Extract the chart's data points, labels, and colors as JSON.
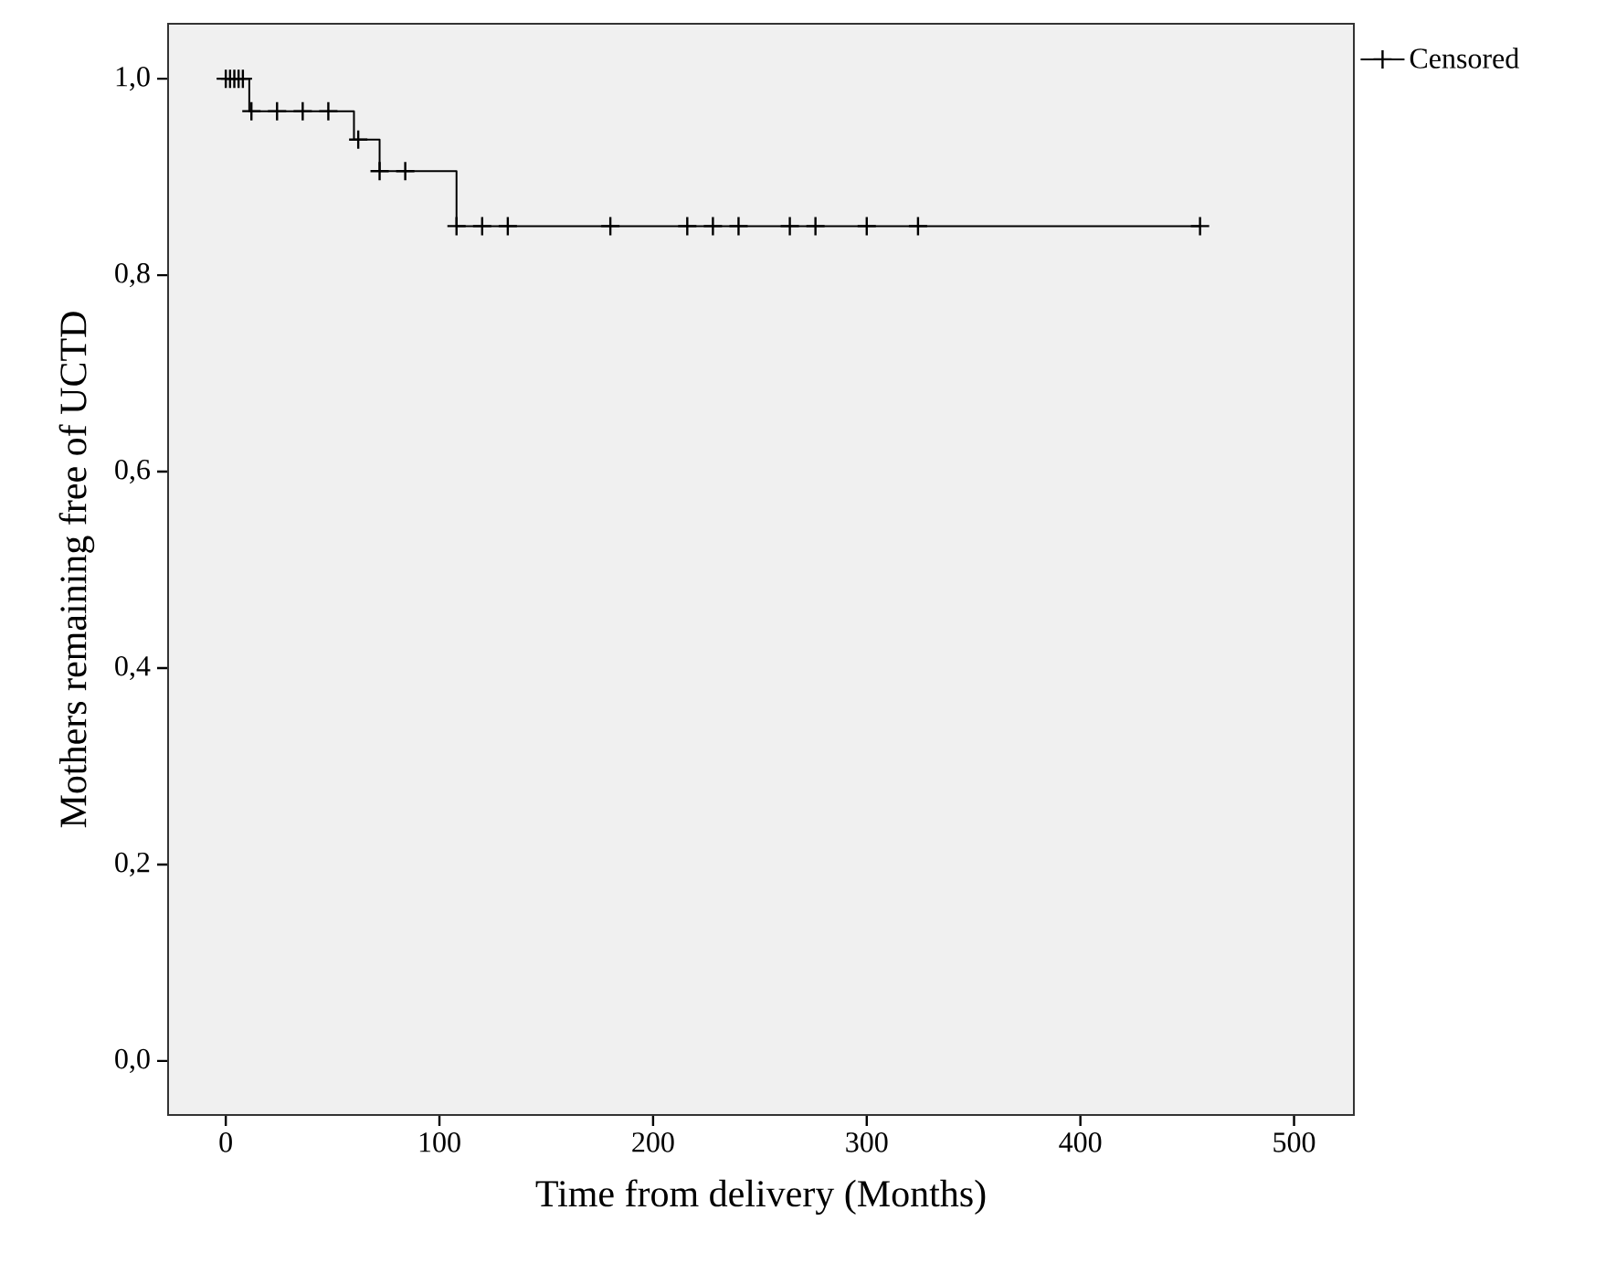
{
  "chart_data": {
    "type": "step",
    "xlabel": "Time from delivery (Months)",
    "ylabel": "Mothers remaining free of UCTD",
    "xlim": [
      -27,
      528
    ],
    "ylim": [
      -0.055,
      1.056
    ],
    "xticks": [
      0,
      100,
      200,
      300,
      400,
      500
    ],
    "yticks": [
      {
        "value": 0,
        "label": "0,0"
      },
      {
        "value": 0.2,
        "label": "0,2"
      },
      {
        "value": 0.4,
        "label": "0,4"
      },
      {
        "value": 0.6,
        "label": "0,6"
      },
      {
        "value": 0.8,
        "label": "0,8"
      },
      {
        "value": 1,
        "label": "1,0"
      }
    ],
    "legend": "top right",
    "grid": false,
    "series": [
      {
        "color": "#000000",
        "x": [
          0,
          11,
          60,
          72,
          108,
          456
        ],
        "values": [
          1,
          0.967,
          0.938,
          0.906,
          0.85,
          0.85
        ]
      },
      {
        "type": "scatter",
        "name": "Censored",
        "color": "#000000",
        "marker": "cross",
        "x": [
          0,
          2,
          4,
          6,
          8,
          12,
          24,
          36,
          48,
          62,
          72,
          84,
          108,
          120,
          132,
          180,
          216,
          228,
          240,
          264,
          276,
          300,
          324,
          456
        ],
        "values": [
          1,
          1,
          1,
          1,
          1,
          0.967,
          0.967,
          0.967,
          0.967,
          0.938,
          0.906,
          0.906,
          0.85,
          0.85,
          0.85,
          0.85,
          0.85,
          0.85,
          0.85,
          0.85,
          0.85,
          0.85,
          0.85,
          0.85
        ]
      }
    ]
  }
}
